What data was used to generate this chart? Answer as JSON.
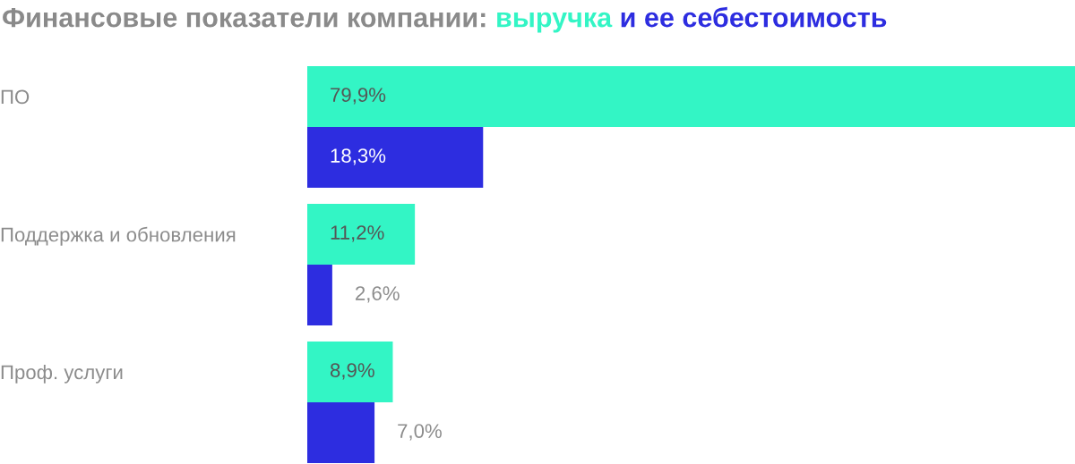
{
  "chart_data": {
    "type": "bar",
    "orientation": "horizontal",
    "title": "Финансовые показатели компании:",
    "categories": [
      "ПО",
      "Поддержка и обновления",
      "Проф. услуги"
    ],
    "series": [
      {
        "name": "выручка",
        "color": "#33f5c5",
        "values": [
          79.9,
          11.2,
          8.9
        ],
        "value_labels": [
          "79,9%",
          "11,2%",
          "8,9%"
        ]
      },
      {
        "name": "и ее себестоимость",
        "color": "#2d2de0",
        "values": [
          18.3,
          2.6,
          7.0
        ],
        "value_labels": [
          "18,3%",
          "2,6%",
          "7,0%"
        ]
      }
    ],
    "xlim": [
      0,
      79.9
    ],
    "tick_labels": "y",
    "grid": false
  }
}
